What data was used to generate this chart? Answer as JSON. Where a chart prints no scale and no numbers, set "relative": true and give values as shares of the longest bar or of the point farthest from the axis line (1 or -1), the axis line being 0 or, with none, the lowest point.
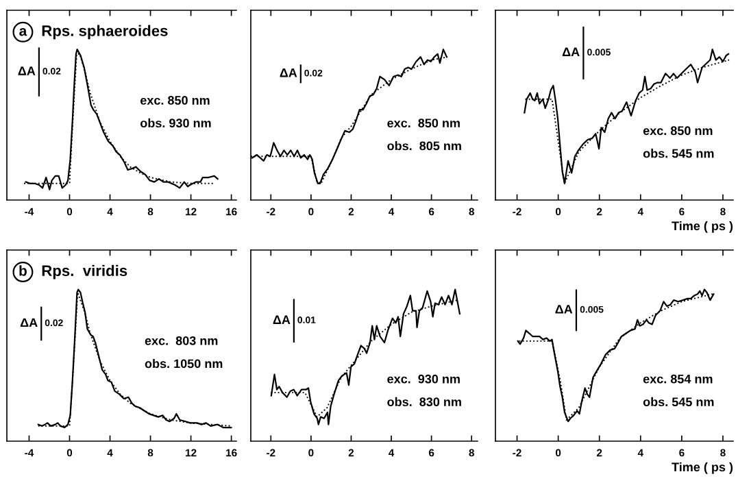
{
  "chart_data": [
    {
      "type": "line",
      "relative": true,
      "title": "Rps. sphaeroides",
      "tick_labels": "x",
      "xlim": [
        -6.2,
        16.5
      ],
      "xticks": [
        -4,
        0,
        4,
        8,
        12,
        16
      ],
      "annotations": [
        "a",
        "ΔA",
        "0.02",
        "exc. 850 nm",
        "obs. 930 nm"
      ],
      "series": [
        {
          "color": "#000000",
          "line_style": "solid",
          "x": [
            -4.33,
            -3.92,
            -3.46,
            -3.01,
            -2.67,
            -2.32,
            -1.98,
            -1.75,
            -1.41,
            -1.07,
            -0.73,
            -0.39,
            -0.16,
            0.07,
            0.3,
            0.46,
            0.64,
            0.75,
            1.09,
            1.44,
            1.78,
            2.12,
            2.35,
            2.69,
            3.03,
            3.37,
            3.83,
            4.28,
            4.62,
            4.97,
            5.42,
            5.76,
            6.22,
            6.56,
            7.02,
            7.47,
            7.93,
            8.38,
            8.84,
            9.29,
            9.75,
            10.43,
            10.89,
            11.34,
            11.69,
            11.91,
            12.48,
            12.94,
            13.17,
            13.74,
            14.31,
            14.65
          ],
          "values": [
            0.12,
            0.11,
            0.11,
            0.1,
            0.08,
            0.15,
            0.07,
            0.13,
            0.16,
            0.16,
            0.08,
            0.1,
            0.13,
            0.27,
            0.54,
            0.76,
            0.97,
            1.0,
            0.96,
            0.88,
            0.76,
            0.63,
            0.6,
            0.57,
            0.51,
            0.45,
            0.39,
            0.36,
            0.32,
            0.3,
            0.25,
            0.2,
            0.21,
            0.22,
            0.19,
            0.17,
            0.13,
            0.12,
            0.14,
            0.12,
            0.12,
            0.1,
            0.08,
            0.12,
            0.09,
            0.1,
            0.12,
            0.12,
            0.15,
            0.15,
            0.16,
            0.14
          ]
        },
        {
          "color": "#000000",
          "line_style": "dotted",
          "x": [
            -4.5,
            0,
            0.3,
            0.7,
            1.0,
            1.5,
            2,
            2.5,
            3,
            4,
            5,
            6,
            7,
            8,
            10,
            12,
            14.3
          ],
          "values": [
            0.11,
            0.11,
            0.5,
            0.97,
            0.97,
            0.86,
            0.72,
            0.62,
            0.52,
            0.39,
            0.29,
            0.22,
            0.18,
            0.15,
            0.12,
            0.11,
            0.11
          ]
        }
      ]
    },
    {
      "type": "line",
      "relative": true,
      "tick_labels": "x",
      "xlim": [
        -3.0,
        8.3
      ],
      "xticks": [
        -2,
        0,
        2,
        4,
        6,
        8
      ],
      "annotations": [
        "ΔA",
        "0.02",
        "exc.  850 nm",
        "obs.  805 nm"
      ],
      "series": [
        {
          "color": "#000000",
          "line_style": "solid",
          "x": [
            -2.93,
            -2.7,
            -2.53,
            -2.36,
            -2.2,
            -2.03,
            -1.86,
            -1.69,
            -1.52,
            -1.35,
            -1.18,
            -1.01,
            -0.84,
            -0.68,
            -0.51,
            -0.34,
            -0.17,
            -0.06,
            0.06,
            0.17,
            0.34,
            0.45,
            0.62,
            0.84,
            1.07,
            1.3,
            1.52,
            1.69,
            1.91,
            2.08,
            2.25,
            2.42,
            2.59,
            2.76,
            2.93,
            3.1,
            3.27,
            3.43,
            3.66,
            3.89,
            4.11,
            4.34,
            4.5,
            4.67,
            4.84,
            5.01,
            5.24,
            5.46,
            5.63,
            5.8,
            5.97,
            6.14,
            6.31,
            6.42,
            6.59,
            6.76
          ],
          "values": [
            0.28,
            0.3,
            0.28,
            0.26,
            0.3,
            0.29,
            0.38,
            0.33,
            0.29,
            0.33,
            0.3,
            0.33,
            0.29,
            0.33,
            0.28,
            0.3,
            0.27,
            0.3,
            0.27,
            0.18,
            0.11,
            0.11,
            0.17,
            0.21,
            0.27,
            0.34,
            0.41,
            0.46,
            0.45,
            0.47,
            0.53,
            0.6,
            0.6,
            0.64,
            0.69,
            0.7,
            0.74,
            0.82,
            0.8,
            0.76,
            0.82,
            0.83,
            0.82,
            0.87,
            0.88,
            0.87,
            0.92,
            0.95,
            0.9,
            0.93,
            0.92,
            0.95,
            0.97,
            0.91,
            1.0,
            0.95
          ]
        },
        {
          "color": "#000000",
          "line_style": "dotted",
          "x": [
            -3,
            0,
            0.3,
            0.5,
            1,
            1.5,
            2,
            3,
            4,
            5,
            6,
            6.8
          ],
          "values": [
            0.29,
            0.29,
            0.12,
            0.11,
            0.25,
            0.41,
            0.49,
            0.7,
            0.8,
            0.87,
            0.93,
            0.95
          ]
        }
      ]
    },
    {
      "type": "line",
      "relative": true,
      "tick_labels": "x",
      "xlim": [
        -3.05,
        8.5
      ],
      "xticks": [
        -2,
        0,
        2,
        4,
        6,
        8
      ],
      "xlabel": "Time ( ps )",
      "annotations": [
        "ΔA",
        "0.005",
        "exc. 850 nm",
        "obs. 545 nm"
      ],
      "series": [
        {
          "color": "#000000",
          "line_style": "solid",
          "x": [
            -1.64,
            -1.53,
            -1.36,
            -1.25,
            -1.14,
            -1.02,
            -0.91,
            -0.75,
            -0.63,
            -0.47,
            -0.36,
            -0.24,
            -0.13,
            -0.02,
            0.09,
            0.2,
            0.31,
            0.48,
            0.65,
            0.81,
            0.98,
            1.2,
            1.43,
            1.65,
            1.82,
            1.98,
            2.09,
            2.26,
            2.43,
            2.59,
            2.76,
            2.93,
            3.1,
            3.32,
            3.54,
            3.76,
            3.93,
            4.1,
            4.21,
            4.32,
            4.49,
            4.65,
            4.82,
            4.99,
            5.21,
            5.43,
            5.6,
            5.77,
            5.99,
            6.21,
            6.44,
            6.66,
            6.77,
            6.99,
            7.22,
            7.38,
            7.49,
            7.66,
            7.83,
            8.0,
            8.16,
            8.27
          ],
          "values": [
            0.58,
            0.67,
            0.71,
            0.67,
            0.66,
            0.71,
            0.64,
            0.67,
            0.61,
            0.67,
            0.73,
            0.76,
            0.66,
            0.54,
            0.36,
            0.19,
            0.11,
            0.26,
            0.18,
            0.29,
            0.33,
            0.37,
            0.4,
            0.41,
            0.44,
            0.34,
            0.48,
            0.45,
            0.54,
            0.58,
            0.54,
            0.58,
            0.59,
            0.65,
            0.56,
            0.66,
            0.71,
            0.73,
            0.82,
            0.73,
            0.74,
            0.77,
            0.78,
            0.78,
            0.84,
            0.81,
            0.84,
            0.81,
            0.84,
            0.87,
            0.9,
            0.85,
            0.78,
            0.88,
            0.91,
            0.93,
            1.0,
            0.93,
            0.95,
            0.92,
            0.96,
            0.97
          ]
        },
        {
          "color": "#000000",
          "line_style": "dotted",
          "x": [
            -1.6,
            -0.3,
            0.3,
            1,
            2,
            3,
            4,
            5,
            6,
            7,
            8.3
          ],
          "values": [
            0.67,
            0.67,
            0.11,
            0.32,
            0.46,
            0.58,
            0.68,
            0.76,
            0.83,
            0.88,
            0.93
          ]
        }
      ]
    },
    {
      "type": "line",
      "relative": true,
      "title": "Rps.  viridis",
      "tick_labels": "x",
      "xlim": [
        -6.2,
        16.5
      ],
      "xticks": [
        -4,
        0,
        4,
        8,
        12,
        16
      ],
      "annotations": [
        "b",
        "ΔA",
        "0.02",
        "exc.  803 nm",
        "obs. 1050 nm"
      ],
      "series": [
        {
          "color": "#000000",
          "line_style": "solid",
          "x": [
            -3.09,
            -2.75,
            -2.42,
            -2.19,
            -1.85,
            -1.4,
            -1.17,
            -0.9,
            -0.5,
            -0.16,
            0.07,
            0.29,
            0.52,
            0.74,
            0.86,
            1.08,
            1.31,
            1.53,
            1.76,
            2.1,
            2.33,
            2.55,
            2.89,
            3.23,
            3.57,
            3.79,
            4.13,
            4.47,
            4.92,
            5.37,
            5.82,
            6.16,
            6.5,
            6.95,
            7.4,
            7.86,
            8.31,
            8.76,
            9.21,
            9.55,
            9.89,
            10.34,
            10.56,
            10.9,
            11.47,
            11.92,
            12.6,
            13.05,
            13.5,
            13.95,
            14.63,
            15.19,
            15.53,
            15.98
          ],
          "values": [
            0.11,
            0.1,
            0.11,
            0.12,
            0.1,
            0.11,
            0.12,
            0.1,
            0.09,
            0.11,
            0.17,
            0.4,
            0.68,
            0.98,
            1.0,
            0.98,
            0.91,
            0.85,
            0.74,
            0.7,
            0.69,
            0.65,
            0.56,
            0.47,
            0.44,
            0.4,
            0.39,
            0.33,
            0.31,
            0.28,
            0.29,
            0.25,
            0.23,
            0.22,
            0.2,
            0.18,
            0.17,
            0.16,
            0.17,
            0.14,
            0.13,
            0.15,
            0.18,
            0.14,
            0.13,
            0.12,
            0.12,
            0.11,
            0.12,
            0.1,
            0.11,
            0.09,
            0.09,
            0.09
          ]
        },
        {
          "color": "#000000",
          "line_style": "dotted",
          "x": [
            -3.1,
            0,
            0.3,
            0.8,
            1.5,
            2,
            3,
            4,
            5,
            6,
            8,
            10,
            12,
            14,
            16
          ],
          "values": [
            0.1,
            0.1,
            0.4,
            0.98,
            0.85,
            0.72,
            0.53,
            0.4,
            0.31,
            0.25,
            0.18,
            0.14,
            0.12,
            0.11,
            0.1
          ]
        }
      ]
    },
    {
      "type": "line",
      "relative": true,
      "tick_labels": "x",
      "xlim": [
        -3.0,
        8.3
      ],
      "xticks": [
        -2,
        0,
        2,
        4,
        6,
        8
      ],
      "annotations": [
        "ΔA",
        "0.01",
        "exc.  930 nm",
        "obs.  830 nm"
      ],
      "series": [
        {
          "color": "#000000",
          "line_style": "solid",
          "x": [
            -1.98,
            -1.82,
            -1.7,
            -1.59,
            -1.42,
            -1.2,
            -1.03,
            -0.86,
            -0.69,
            -0.47,
            -0.25,
            -0.13,
            -0.02,
            0.15,
            0.31,
            0.37,
            0.48,
            0.65,
            0.82,
            0.87,
            0.98,
            1.15,
            1.37,
            1.54,
            1.77,
            1.88,
            1.99,
            2.16,
            2.32,
            2.49,
            2.66,
            2.77,
            2.94,
            3.05,
            3.16,
            3.27,
            3.44,
            3.66,
            3.83,
            4.06,
            4.22,
            4.34,
            4.45,
            4.61,
            4.78,
            4.95,
            5.06,
            5.23,
            5.28,
            5.4,
            5.56,
            5.79,
            5.96,
            6.07,
            6.18,
            6.35,
            6.51,
            6.68,
            6.85,
            7.02,
            7.18,
            7.41
          ],
          "values": [
            0.3,
            0.44,
            0.34,
            0.36,
            0.32,
            0.29,
            0.33,
            0.34,
            0.3,
            0.34,
            0.34,
            0.35,
            0.26,
            0.18,
            0.15,
            0.11,
            0.16,
            0.15,
            0.19,
            0.11,
            0.23,
            0.31,
            0.4,
            0.43,
            0.45,
            0.37,
            0.49,
            0.51,
            0.57,
            0.63,
            0.61,
            0.58,
            0.65,
            0.76,
            0.67,
            0.76,
            0.69,
            0.65,
            0.73,
            0.81,
            0.78,
            0.82,
            0.69,
            0.84,
            0.89,
            0.96,
            0.86,
            0.86,
            0.75,
            0.86,
            0.88,
            0.99,
            0.92,
            0.82,
            0.91,
            0.9,
            0.95,
            0.9,
            0.96,
            0.9,
            1.0,
            0.84
          ]
        },
        {
          "color": "#000000",
          "line_style": "dotted",
          "x": [
            -2,
            -0.3,
            0.3,
            0.8,
            1.5,
            2,
            3,
            4,
            5,
            6,
            7.3
          ],
          "values": [
            0.32,
            0.32,
            0.16,
            0.22,
            0.42,
            0.5,
            0.66,
            0.77,
            0.85,
            0.89,
            0.93
          ]
        }
      ]
    },
    {
      "type": "line",
      "relative": true,
      "tick_labels": "x",
      "xlim": [
        -3.05,
        8.5
      ],
      "xticks": [
        -2,
        0,
        2,
        4,
        6,
        8
      ],
      "xlabel": "Time ( ps )",
      "annotations": [
        "ΔA",
        "0.005",
        "exc. 854 nm",
        "obs. 545 nm"
      ],
      "series": [
        {
          "color": "#000000",
          "line_style": "solid",
          "x": [
            -1.96,
            -1.85,
            -1.68,
            -1.57,
            -1.4,
            -1.24,
            -1.07,
            -0.91,
            -0.74,
            -0.57,
            -0.41,
            -0.3,
            -0.24,
            -0.13,
            -0.02,
            0.09,
            0.2,
            0.31,
            0.48,
            0.59,
            0.75,
            0.92,
            1.03,
            1.14,
            1.3,
            1.41,
            1.52,
            1.69,
            1.86,
            2.08,
            2.3,
            2.52,
            2.74,
            2.91,
            3.07,
            3.29,
            3.51,
            3.73,
            3.85,
            3.96,
            4.12,
            4.29,
            4.4,
            4.56,
            4.73,
            4.95,
            5.12,
            5.28,
            5.45,
            5.61,
            5.83,
            6.06,
            6.28,
            6.44,
            6.61,
            6.77,
            6.88,
            6.99,
            7.1,
            7.22,
            7.38,
            7.55
          ],
          "values": [
            0.66,
            0.64,
            0.68,
            0.73,
            0.71,
            0.69,
            0.69,
            0.69,
            0.67,
            0.68,
            0.66,
            0.67,
            0.62,
            0.54,
            0.46,
            0.36,
            0.29,
            0.19,
            0.13,
            0.15,
            0.17,
            0.2,
            0.18,
            0.26,
            0.35,
            0.31,
            0.29,
            0.42,
            0.46,
            0.51,
            0.57,
            0.6,
            0.61,
            0.65,
            0.69,
            0.71,
            0.73,
            0.74,
            0.8,
            0.76,
            0.77,
            0.8,
            0.78,
            0.77,
            0.83,
            0.86,
            0.92,
            0.89,
            0.9,
            0.93,
            0.92,
            0.93,
            0.94,
            0.94,
            0.96,
            0.97,
            0.99,
            0.96,
            1.0,
            0.98,
            0.93,
            0.97
          ]
        },
        {
          "color": "#000000",
          "line_style": "dotted",
          "x": [
            -1.9,
            -0.3,
            0.1,
            0.4,
            1,
            2,
            3,
            4,
            5,
            6,
            7.5
          ],
          "values": [
            0.66,
            0.66,
            0.4,
            0.14,
            0.22,
            0.49,
            0.68,
            0.78,
            0.86,
            0.92,
            0.97
          ]
        }
      ]
    }
  ]
}
